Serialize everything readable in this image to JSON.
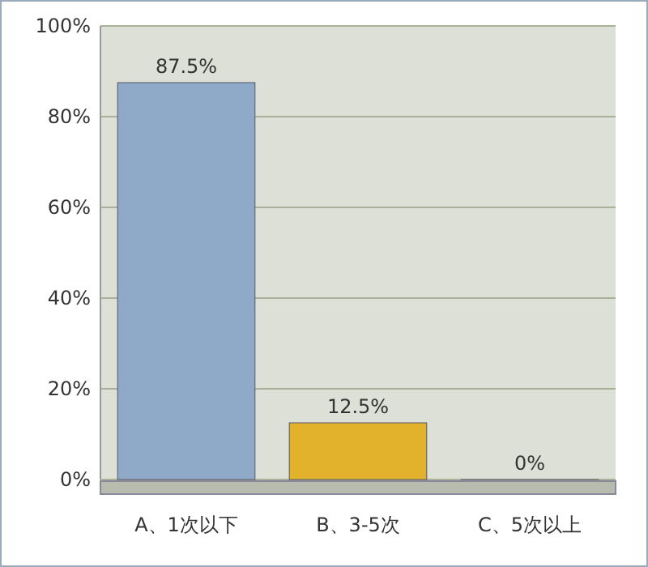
{
  "chart_data": {
    "type": "bar",
    "categories": [
      "A、1次以下",
      "B、3-5次",
      "C、5次以上"
    ],
    "values": [
      87.5,
      12.5,
      0
    ],
    "colors": [
      "#8fa9c8",
      "#e2b22c",
      "#8cbf3a"
    ],
    "value_labels": [
      "87.5%",
      "12.5%",
      "0%"
    ],
    "ylim": [
      0,
      100
    ],
    "yticks": [
      {
        "value": 0,
        "label": "0%"
      },
      {
        "value": 20,
        "label": "20%"
      },
      {
        "value": 40,
        "label": "40%"
      },
      {
        "value": 60,
        "label": "60%"
      },
      {
        "value": 80,
        "label": "80%"
      },
      {
        "value": 100,
        "label": "100%"
      }
    ],
    "grid": "y"
  }
}
